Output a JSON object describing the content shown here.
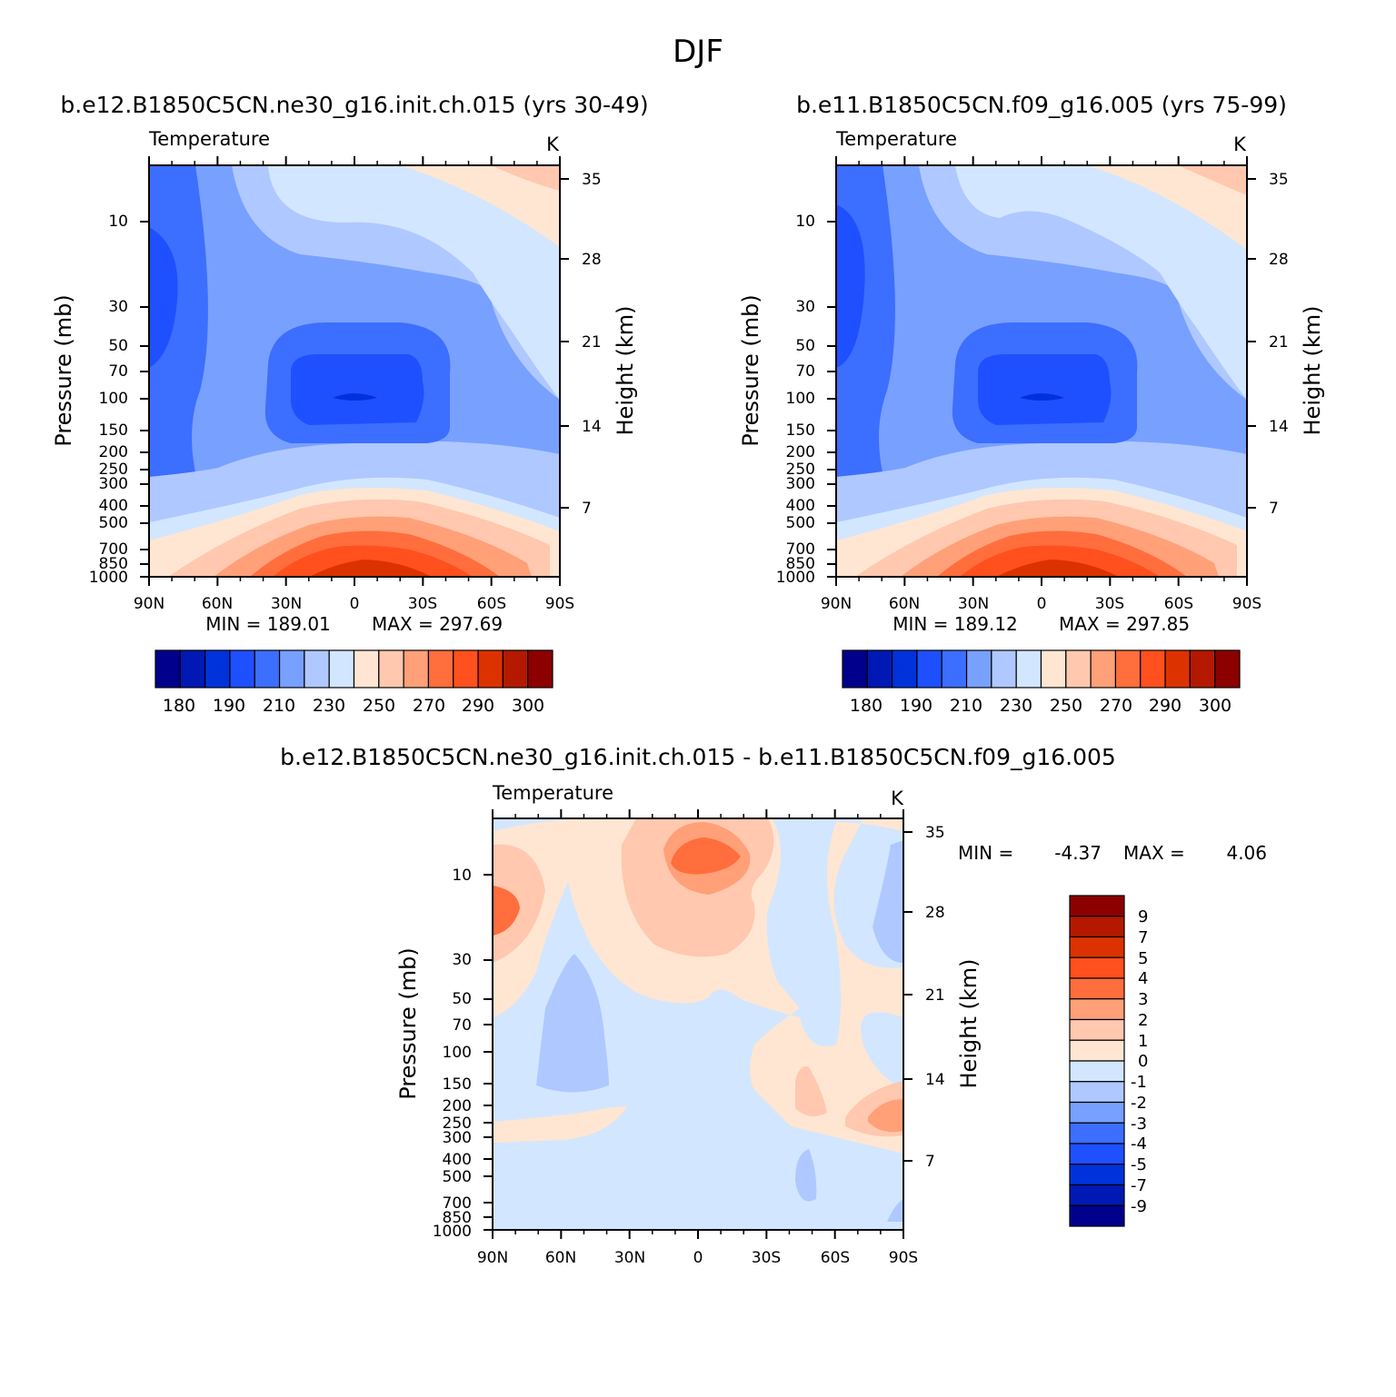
{
  "page_title": "DJF",
  "colors": {
    "scale14": [
      "#00008c",
      "#0019b4",
      "#0032dc",
      "#1e50ff",
      "#3c6eff",
      "#78a0ff",
      "#afc8ff",
      "#d2e6ff",
      "#ffe6d2",
      "#ffc8af",
      "#ffa078",
      "#ff6e3c",
      "#ff501e",
      "#dc3200",
      "#b41900",
      "#8c0000"
    ]
  },
  "chart_data": [
    {
      "type": "heatmap",
      "id": "panel1",
      "title": "b.e12.B1850C5CN.ne30_g16.init.ch.015 (yrs 30-49)",
      "variable": "Temperature",
      "units": "K",
      "xlabel": "",
      "ylabel": "Pressure (mb)",
      "y2label": "Height (km)",
      "x_ticks": [
        "90N",
        "60N",
        "30N",
        "0",
        "30S",
        "60S",
        "90S"
      ],
      "y_ticks": [
        "10",
        "30",
        "50",
        "70",
        "100",
        "150",
        "200",
        "250",
        "300",
        "400",
        "500",
        "700",
        "850",
        "1000"
      ],
      "y2_ticks": [
        "35",
        "28",
        "21",
        "14",
        "7"
      ],
      "min_label": "MIN = 189.01",
      "max_label": "MAX = 297.69",
      "colorbar_labels": [
        "180",
        "190",
        "210",
        "230",
        "250",
        "270",
        "290",
        "300"
      ],
      "contour_levels": [
        180,
        185,
        190,
        200,
        210,
        220,
        230,
        240,
        250,
        260,
        270,
        280,
        290,
        295,
        300
      ],
      "structure": "cold tropical tropopause ~100 mb (~190 K), warm surface tropics (~295 K), cold NH polar stratosphere, warm SH polar stratosphere"
    },
    {
      "type": "heatmap",
      "id": "panel2",
      "title": "b.e11.B1850C5CN.f09_g16.005 (yrs 75-99)",
      "variable": "Temperature",
      "units": "K",
      "xlabel": "",
      "ylabel": "Pressure (mb)",
      "y2label": "Height (km)",
      "x_ticks": [
        "90N",
        "60N",
        "30N",
        "0",
        "30S",
        "60S",
        "90S"
      ],
      "y_ticks": [
        "10",
        "30",
        "50",
        "70",
        "100",
        "150",
        "200",
        "250",
        "300",
        "400",
        "500",
        "700",
        "850",
        "1000"
      ],
      "y2_ticks": [
        "35",
        "28",
        "21",
        "14",
        "7"
      ],
      "min_label": "MIN = 189.12",
      "max_label": "MAX = 297.85",
      "colorbar_labels": [
        "180",
        "190",
        "210",
        "230",
        "250",
        "270",
        "290",
        "300"
      ],
      "contour_levels": [
        180,
        185,
        190,
        200,
        210,
        220,
        230,
        240,
        250,
        260,
        270,
        280,
        290,
        295,
        300
      ],
      "structure": "nearly identical to panel 1"
    },
    {
      "type": "heatmap",
      "id": "panel3",
      "title": "b.e12.B1850C5CN.ne30_g16.init.ch.015 - b.e11.B1850C5CN.f09_g16.005",
      "variable": "Temperature",
      "units": "K",
      "xlabel": "",
      "ylabel": "Pressure (mb)",
      "y2label": "Height (km)",
      "x_ticks": [
        "90N",
        "60N",
        "30N",
        "0",
        "30S",
        "60S",
        "90S"
      ],
      "y_ticks": [
        "10",
        "30",
        "50",
        "70",
        "100",
        "150",
        "200",
        "250",
        "300",
        "400",
        "500",
        "700",
        "850",
        "1000"
      ],
      "y2_ticks": [
        "35",
        "28",
        "21",
        "14",
        "7"
      ],
      "min_label": "MIN =",
      "min_value": "-4.37",
      "max_label": "MAX =",
      "max_value": "4.06",
      "colorbar_labels": [
        "9",
        "7",
        "5",
        "4",
        "3",
        "2",
        "1",
        "0",
        "-1",
        "-2",
        "-3",
        "-4",
        "-5",
        "-7",
        "-9"
      ],
      "contour_levels": [
        -9,
        -7,
        -5,
        -4,
        -3,
        -2,
        -1,
        0,
        1,
        2,
        3,
        4,
        5,
        7,
        9
      ],
      "structure": "mostly -1..0 K; warm 1-4 K anomalies in NH upper stratosphere and equatorial 5-10 mb; cool -1..-2 K tongue near 60N-45N 30-150 mb"
    }
  ]
}
